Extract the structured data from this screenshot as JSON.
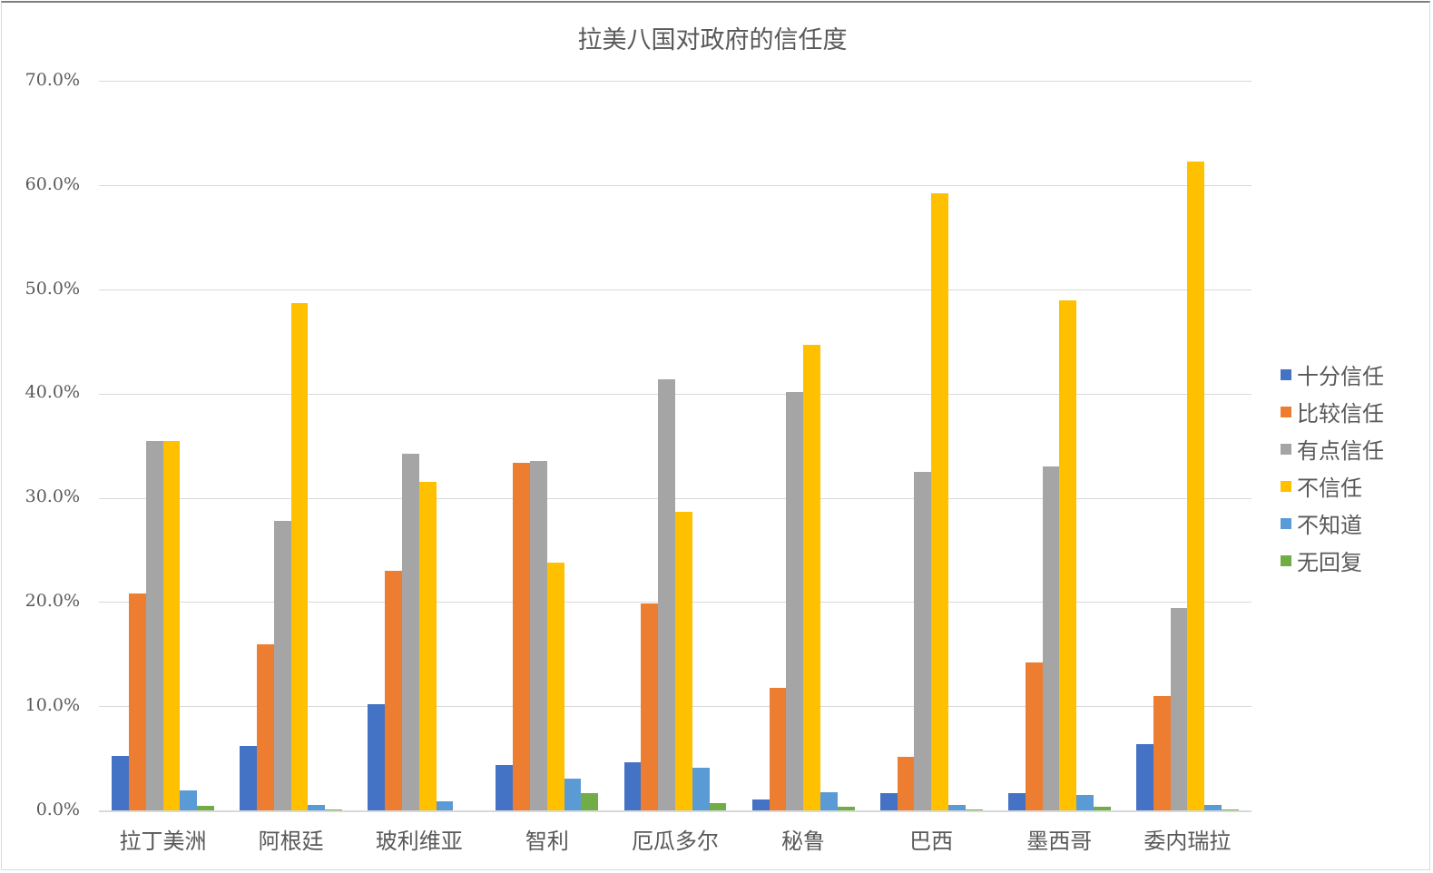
{
  "chart_data": {
    "type": "bar",
    "title": "拉美八国对政府的信任度",
    "xlabel": "",
    "ylabel": "",
    "ylim": [
      0,
      70
    ],
    "yticks": [
      "0.0%",
      "10.0%",
      "20.0%",
      "30.0%",
      "40.0%",
      "50.0%",
      "60.0%",
      "70.0%"
    ],
    "grid": true,
    "legend_position": "right",
    "categories": [
      "拉丁美洲",
      "阿根廷",
      "玻利维亚",
      "智利",
      "厄瓜多尔",
      "秘鲁",
      "巴西",
      "墨西哥",
      "委内瑞拉"
    ],
    "series": [
      {
        "name": "十分信任",
        "color": "#4472C4",
        "values": [
          5.3,
          6.2,
          10.2,
          4.4,
          4.7,
          1.1,
          1.7,
          1.7,
          6.4
        ]
      },
      {
        "name": "比较信任",
        "color": "#ED7D31",
        "values": [
          20.9,
          16.0,
          23.0,
          33.4,
          19.9,
          11.8,
          5.2,
          14.2,
          11.0
        ]
      },
      {
        "name": "有点信任",
        "color": "#A5A5A5",
        "values": [
          35.5,
          27.8,
          34.3,
          33.6,
          41.4,
          40.2,
          32.5,
          33.1,
          19.5
        ]
      },
      {
        "name": "不信任",
        "color": "#FFC000",
        "values": [
          35.5,
          48.7,
          31.6,
          23.8,
          28.7,
          44.7,
          59.3,
          49.0,
          62.3
        ]
      },
      {
        "name": "不知道",
        "color": "#5B9BD5",
        "values": [
          2.0,
          0.6,
          0.9,
          3.1,
          4.1,
          1.8,
          0.6,
          1.5,
          0.6
        ]
      },
      {
        "name": "无回复",
        "color": "#70AD47",
        "values": [
          0.5,
          0.1,
          0.0,
          1.7,
          0.7,
          0.4,
          0.1,
          0.4,
          0.1
        ]
      }
    ]
  }
}
